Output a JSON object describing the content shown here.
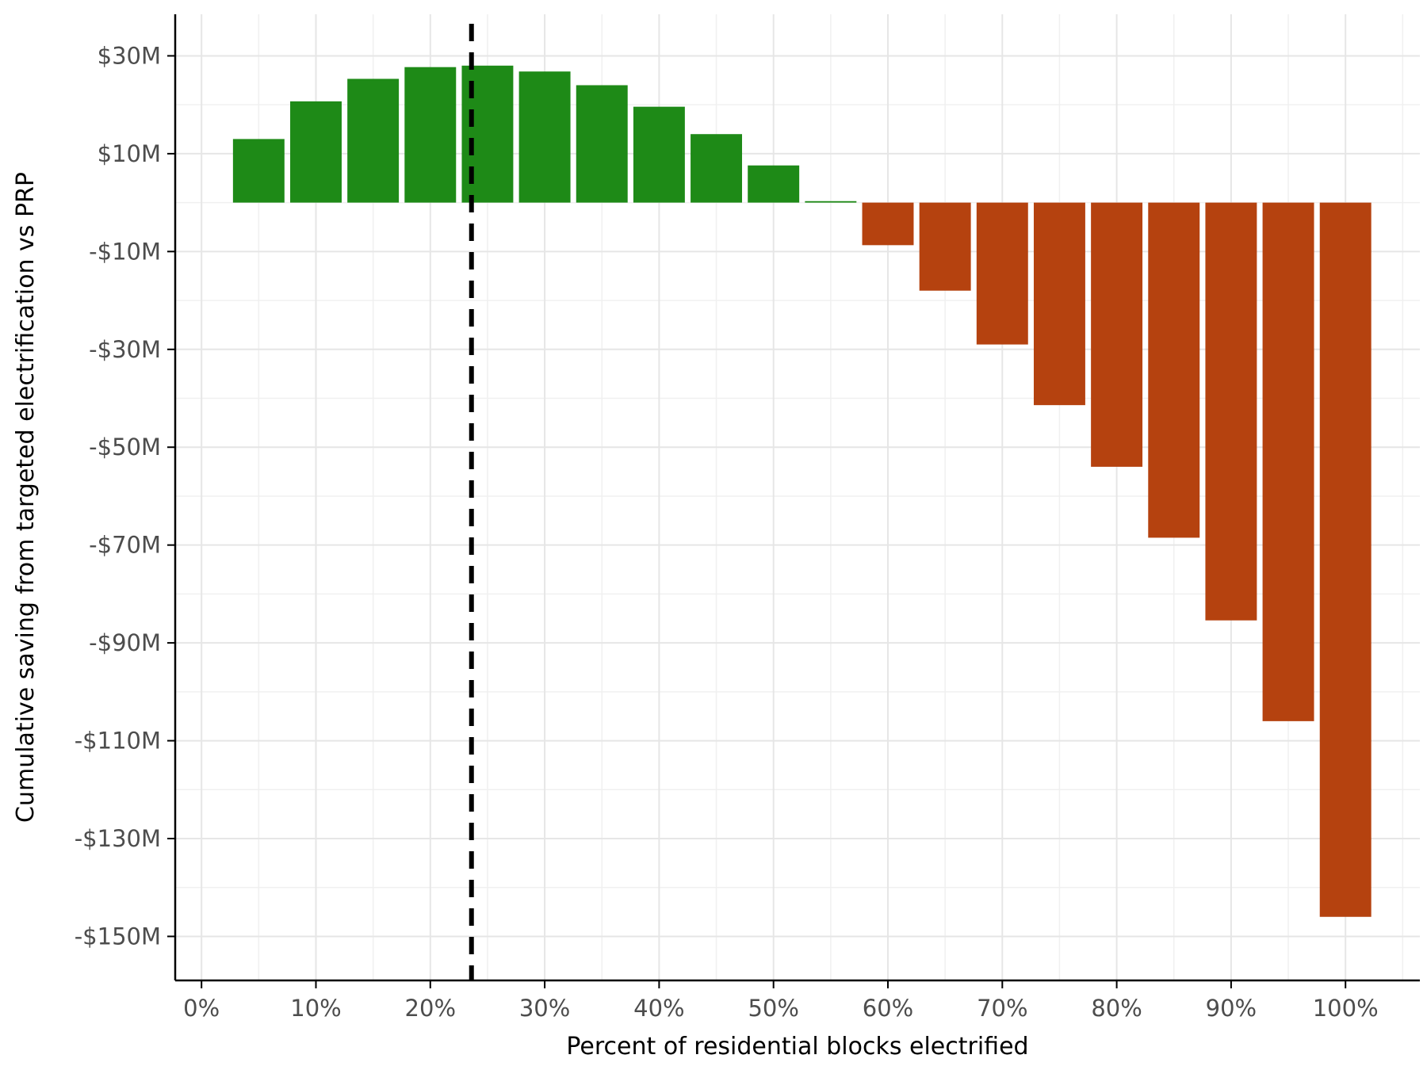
{
  "chart_data": {
    "type": "bar",
    "title": "",
    "xlabel": "Percent of residential blocks electrified",
    "ylabel": "Cumulative saving from targeted electrification vs PRP",
    "x_unit": "percent",
    "xlim": [
      -2.3,
      106.5
    ],
    "ylim": [
      -159,
      38.5
    ],
    "x_ticks": [
      0,
      10,
      20,
      30,
      40,
      50,
      60,
      70,
      80,
      90,
      100
    ],
    "x_tick_labels": [
      "0%",
      "10%",
      "20%",
      "30%",
      "40%",
      "50%",
      "60%",
      "70%",
      "80%",
      "90%",
      "100%"
    ],
    "y_ticks": [
      30,
      10,
      -10,
      -30,
      -50,
      -70,
      -90,
      -110,
      -130,
      -150
    ],
    "y_tick_labels": [
      "$30M",
      "$10M",
      "-$10M",
      "-$30M",
      "-$50M",
      "-$70M",
      "-$90M",
      "-$110M",
      "-$130M",
      "-$150M"
    ],
    "bar_width": 4.5,
    "x": [
      5,
      10,
      15,
      20,
      25,
      30,
      35,
      40,
      45,
      50,
      55,
      60,
      65,
      70,
      75,
      80,
      85,
      90,
      95,
      100
    ],
    "values": [
      13,
      20.7,
      25.3,
      27.7,
      28,
      26.8,
      24,
      19.6,
      14,
      7.6,
      0.3,
      -8.7,
      -18,
      -29,
      -41.4,
      -54,
      -68.5,
      -85.4,
      -106,
      -146
    ],
    "colors": {
      "positive": "#1e8a17",
      "negative": "#b5420f",
      "reference_line": "#000000"
    },
    "reference_line": {
      "x": 23.6,
      "style": "dashed"
    },
    "grid": true
  }
}
